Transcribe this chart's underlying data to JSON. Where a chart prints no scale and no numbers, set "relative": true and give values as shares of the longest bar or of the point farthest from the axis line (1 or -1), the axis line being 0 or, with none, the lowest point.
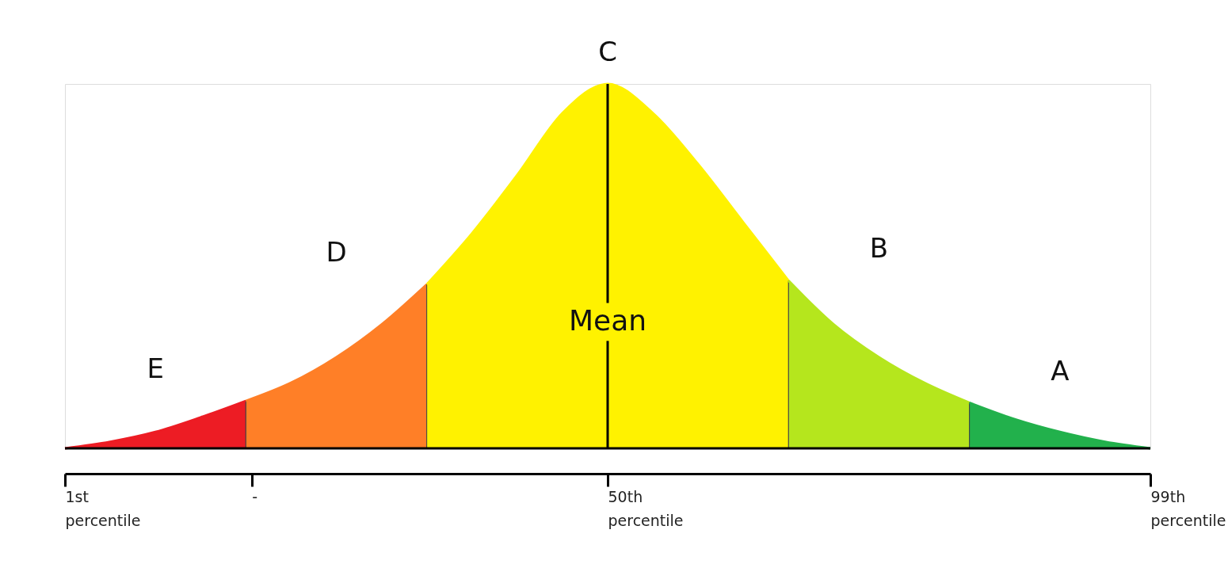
{
  "chart_data": {
    "type": "area",
    "relative": true,
    "legend": false,
    "grid": false,
    "categories": [
      null,
      null,
      null,
      null,
      null,
      null,
      null,
      null,
      null,
      null,
      null,
      null,
      null,
      null,
      null,
      null,
      null,
      null,
      null,
      null,
      null,
      null,
      null,
      null,
      null
    ],
    "series": [
      {
        "name": "E",
        "color": "#ed1c24",
        "values": [
          0,
          0.018,
          0.045,
          0.085,
          0.13,
          null,
          null,
          null,
          null,
          null,
          null,
          null,
          null,
          null,
          null,
          null,
          null,
          null,
          null,
          null,
          null,
          null,
          null,
          null,
          null
        ]
      },
      {
        "name": "D",
        "color": "#ff7f27",
        "values": [
          null,
          null,
          null,
          null,
          0.13,
          0.18,
          0.25,
          0.34,
          0.45,
          null,
          null,
          null,
          null,
          null,
          null,
          null,
          null,
          null,
          null,
          null,
          null,
          null,
          null,
          null,
          null
        ]
      },
      {
        "name": "C",
        "color": "#fff200",
        "values": [
          null,
          null,
          null,
          null,
          null,
          null,
          null,
          null,
          0.45,
          0.59,
          0.75,
          0.92,
          1.0,
          0.92,
          0.78,
          0.62,
          0.46,
          null,
          null,
          null,
          null,
          null,
          null,
          null,
          null
        ]
      },
      {
        "name": "B",
        "color": "#b5e61d",
        "values": [
          null,
          null,
          null,
          null,
          null,
          null,
          null,
          null,
          null,
          null,
          null,
          null,
          null,
          null,
          null,
          null,
          0.46,
          0.34,
          0.25,
          0.18,
          0.125,
          null,
          null,
          null,
          null
        ]
      },
      {
        "name": "A",
        "color": "#22b14c",
        "values": [
          null,
          null,
          null,
          null,
          null,
          null,
          null,
          null,
          null,
          null,
          null,
          null,
          null,
          null,
          null,
          null,
          null,
          null,
          null,
          null,
          0.125,
          0.08,
          0.045,
          0.018,
          0
        ]
      }
    ],
    "ref_lines": [
      {
        "axis": "x",
        "label": "Mean"
      }
    ],
    "annotations": [
      "1st percentile",
      "-",
      "50th percentile",
      "99th percentile"
    ]
  }
}
